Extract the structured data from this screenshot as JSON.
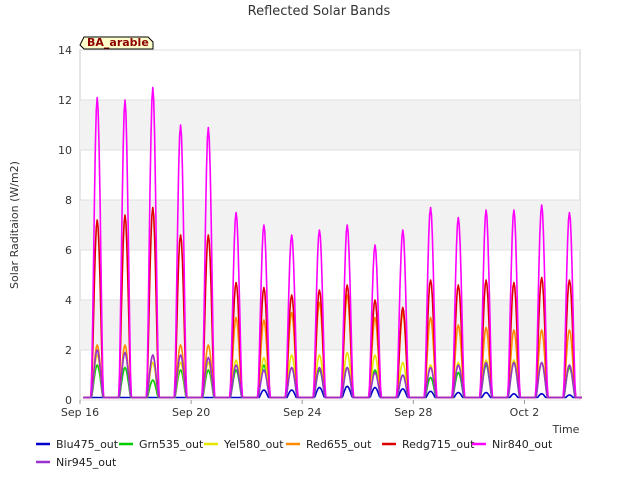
{
  "chart_data": {
    "type": "line",
    "title": "Reflected Solar Bands",
    "xlabel": "Time",
    "ylabel": "Solar Raditaion (W/m2)",
    "badge": "BA_arable",
    "xlim": [
      "2023-09-16",
      "2023-10-04"
    ],
    "ylim": [
      0,
      14
    ],
    "yticks": [
      0,
      2,
      4,
      6,
      8,
      10,
      12,
      14
    ],
    "xticks": [
      {
        "date": "2023-09-16",
        "label": "Sep 16"
      },
      {
        "date": "2023-09-20",
        "label": "Sep 20"
      },
      {
        "date": "2023-09-24",
        "label": "Sep 24"
      },
      {
        "date": "2023-09-28",
        "label": "Sep 28"
      },
      {
        "date": "2023-10-02",
        "label": "Oct 2"
      }
    ],
    "grid": true,
    "legend_position": "bottom",
    "day_centers": [
      "2023-09-16",
      "2023-09-17",
      "2023-09-18",
      "2023-09-19",
      "2023-09-20",
      "2023-09-21",
      "2023-09-22",
      "2023-09-23",
      "2023-09-24",
      "2023-09-25",
      "2023-09-26",
      "2023-09-27",
      "2023-09-28",
      "2023-09-29",
      "2023-09-30",
      "2023-10-01",
      "2023-10-02",
      "2023-10-03"
    ],
    "series": [
      {
        "name": "Blu475_out",
        "color": "#0000cc",
        "daily_peak": [
          0.05,
          0.05,
          0.05,
          0.05,
          0.05,
          0.05,
          0.4,
          0.4,
          0.5,
          0.55,
          0.5,
          0.45,
          0.35,
          0.3,
          0.3,
          0.25,
          0.25,
          0.2
        ]
      },
      {
        "name": "Grn535_out",
        "color": "#00cc00",
        "daily_peak": [
          1.4,
          1.3,
          0.8,
          1.2,
          1.2,
          1.2,
          1.4,
          1.3,
          1.2,
          1.3,
          1.2,
          1.0,
          0.9,
          1.1,
          1.4,
          1.5,
          1.5,
          1.3
        ]
      },
      {
        "name": "Yel580_out",
        "color": "#e6e600",
        "daily_peak": [
          1.8,
          1.9,
          1.5,
          1.5,
          1.5,
          1.6,
          1.7,
          1.8,
          1.8,
          1.9,
          1.8,
          1.5,
          1.4,
          1.5,
          1.6,
          1.6,
          1.5,
          1.4
        ]
      },
      {
        "name": "Red655_out",
        "color": "#ff8c00",
        "daily_peak": [
          2.2,
          2.2,
          1.8,
          2.2,
          2.2,
          3.3,
          3.2,
          3.5,
          3.9,
          4.2,
          3.3,
          3.5,
          3.3,
          3.0,
          2.9,
          2.8,
          2.8,
          2.8
        ]
      },
      {
        "name": "Redg715_out",
        "color": "#dd0000",
        "daily_peak": [
          7.2,
          7.4,
          7.7,
          6.6,
          6.6,
          4.7,
          4.5,
          4.2,
          4.4,
          4.6,
          4.0,
          3.7,
          4.8,
          4.6,
          4.8,
          4.7,
          4.9,
          4.8
        ]
      },
      {
        "name": "Nir840_out",
        "color": "#ff00ff",
        "daily_peak": [
          12.1,
          12.0,
          12.5,
          11.0,
          10.9,
          7.5,
          7.0,
          6.6,
          6.8,
          7.0,
          6.2,
          6.8,
          7.7,
          7.3,
          7.6,
          7.6,
          7.8,
          7.5
        ]
      },
      {
        "name": "Nir945_out",
        "color": "#9932cc",
        "daily_peak": [
          2.0,
          1.9,
          1.8,
          1.8,
          1.7,
          1.4,
          1.2,
          1.3,
          1.3,
          1.3,
          1.1,
          1.0,
          1.3,
          1.4,
          1.5,
          1.5,
          1.5,
          1.4
        ]
      }
    ]
  }
}
